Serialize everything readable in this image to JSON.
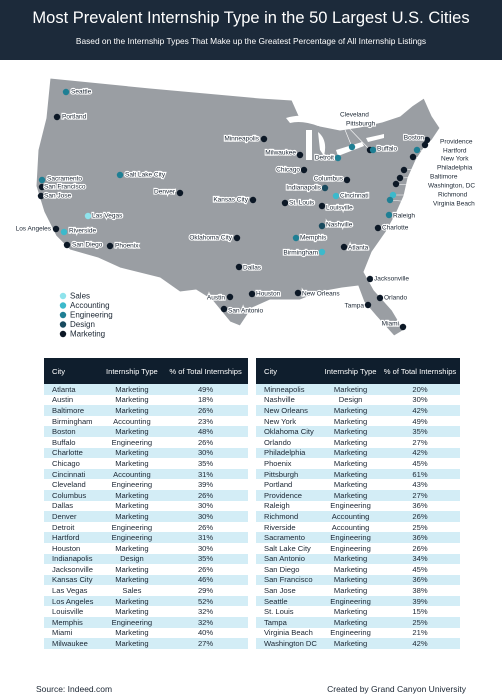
{
  "header": {
    "title": "Most Prevalent Internship Type in the 50 Largest U.S. Cities",
    "subtitle": "Based on the Internship Types That Make up the Greatest Percentage of All Internship Listings"
  },
  "legend": [
    {
      "label": "Sales",
      "color": "#8fe3ec"
    },
    {
      "label": "Accounting",
      "color": "#3cb9cb"
    },
    {
      "label": "Engineering",
      "color": "#1f7f94"
    },
    {
      "label": "Design",
      "color": "#184a5e"
    },
    {
      "label": "Marketing",
      "color": "#0c1826"
    }
  ],
  "map": {
    "cities": [
      {
        "label": "Seattle",
        "type": "Engineering"
      },
      {
        "label": "Portland",
        "type": "Marketing"
      },
      {
        "label": "Sacramento",
        "type": "Engineering"
      },
      {
        "label": "San Francisco",
        "type": "Marketing"
      },
      {
        "label": "San Jose",
        "type": "Marketing"
      },
      {
        "label": "Salt Lake City",
        "type": "Engineering"
      },
      {
        "label": "Las Vegas",
        "type": "Sales"
      },
      {
        "label": "Los Angeles",
        "type": "Marketing"
      },
      {
        "label": "Riverside",
        "type": "Accounting"
      },
      {
        "label": "San Diego",
        "type": "Marketing"
      },
      {
        "label": "Phoenix",
        "type": "Marketing"
      },
      {
        "label": "Denver",
        "type": "Marketing"
      },
      {
        "label": "Kansas City",
        "type": "Marketing"
      },
      {
        "label": "Oklahoma City",
        "type": "Marketing"
      },
      {
        "label": "Dallas",
        "type": "Marketing"
      },
      {
        "label": "Austin",
        "type": "Marketing"
      },
      {
        "label": "San Antonio",
        "type": "Marketing"
      },
      {
        "label": "Houston",
        "type": "Marketing"
      },
      {
        "label": "Minneapolis",
        "type": "Marketing"
      },
      {
        "label": "Milwaukee",
        "type": "Marketing"
      },
      {
        "label": "Chicago",
        "type": "Marketing"
      },
      {
        "label": "Detroit",
        "type": "Engineering"
      },
      {
        "label": "Cleveland",
        "type": "Engineering"
      },
      {
        "label": "Pittsburgh",
        "type": "Marketing"
      },
      {
        "label": "Columbus",
        "type": "Marketing"
      },
      {
        "label": "Indianapolis",
        "type": "Design"
      },
      {
        "label": "Cincinnati",
        "type": "Accounting"
      },
      {
        "label": "Louisville",
        "type": "Marketing"
      },
      {
        "label": "St. Louis",
        "type": "Marketing"
      },
      {
        "label": "Nashville",
        "type": "Design"
      },
      {
        "label": "Memphis",
        "type": "Engineering"
      },
      {
        "label": "Birmingham",
        "type": "Accounting"
      },
      {
        "label": "Atlanta",
        "type": "Marketing"
      },
      {
        "label": "New Orleans",
        "type": "Marketing"
      },
      {
        "label": "Jacksonville",
        "type": "Marketing"
      },
      {
        "label": "Orlando",
        "type": "Marketing"
      },
      {
        "label": "Tampa",
        "type": "Marketing"
      },
      {
        "label": "Miami",
        "type": "Marketing"
      },
      {
        "label": "Charlotte",
        "type": "Marketing"
      },
      {
        "label": "Raleigh",
        "type": "Engineering"
      },
      {
        "label": "Buffalo",
        "type": "Engineering"
      },
      {
        "label": "Boston",
        "type": "Marketing"
      },
      {
        "label": "Providence",
        "type": "Marketing"
      },
      {
        "label": "Hartford",
        "type": "Engineering"
      },
      {
        "label": "New York",
        "type": "Marketing"
      },
      {
        "label": "Philadelphia",
        "type": "Marketing"
      },
      {
        "label": "Baltimore",
        "type": "Marketing"
      },
      {
        "label": "Washington, DC",
        "type": "Marketing"
      },
      {
        "label": "Richmond",
        "type": "Accounting"
      },
      {
        "label": "Virginia Beach",
        "type": "Engineering"
      }
    ]
  },
  "table": {
    "columns": [
      "City",
      "Internship Type",
      "% of Total Internships"
    ],
    "left": [
      [
        "Atlanta",
        "Marketing",
        "49%"
      ],
      [
        "Austin",
        "Marketing",
        "18%"
      ],
      [
        "Baltimore",
        "Marketing",
        "26%"
      ],
      [
        "Birmingham",
        "Accounting",
        "23%"
      ],
      [
        "Boston",
        "Marketing",
        "48%"
      ],
      [
        "Buffalo",
        "Engineering",
        "26%"
      ],
      [
        "Charlotte",
        "Marketing",
        "30%"
      ],
      [
        "Chicago",
        "Marketing",
        "35%"
      ],
      [
        "Cincinnati",
        "Accounting",
        "31%"
      ],
      [
        "Cleveland",
        "Engineering",
        "39%"
      ],
      [
        "Columbus",
        "Marketing",
        "26%"
      ],
      [
        "Dallas",
        "Marketing",
        "30%"
      ],
      [
        "Denver",
        "Marketing",
        "30%"
      ],
      [
        "Detroit",
        "Engineering",
        "26%"
      ],
      [
        "Hartford",
        "Engineering",
        "31%"
      ],
      [
        "Houston",
        "Marketing",
        "30%"
      ],
      [
        "Indianapolis",
        "Design",
        "35%"
      ],
      [
        "Jacksonville",
        "Marketing",
        "26%"
      ],
      [
        "Kansas City",
        "Marketing",
        "46%"
      ],
      [
        "Las Vegas",
        "Sales",
        "29%"
      ],
      [
        "Los Angeles",
        "Marketing",
        "52%"
      ],
      [
        "Louisville",
        "Marketing",
        "32%"
      ],
      [
        "Memphis",
        "Engineering",
        "32%"
      ],
      [
        "Miami",
        "Marketing",
        "40%"
      ],
      [
        "Milwaukee",
        "Marketing",
        "27%"
      ]
    ],
    "right": [
      [
        "Minneapolis",
        "Marketing",
        "20%"
      ],
      [
        "Nashville",
        "Design",
        "30%"
      ],
      [
        "New Orleans",
        "Marketing",
        "42%"
      ],
      [
        "New York",
        "Marketing",
        "49%"
      ],
      [
        "Oklahoma City",
        "Marketing",
        "35%"
      ],
      [
        "Orlando",
        "Marketing",
        "27%"
      ],
      [
        "Philadelphia",
        "Marketing",
        "42%"
      ],
      [
        "Phoenix",
        "Marketing",
        "45%"
      ],
      [
        "Pittsburgh",
        "Marketing",
        "61%"
      ],
      [
        "Portland",
        "Marketing",
        "43%"
      ],
      [
        "Providence",
        "Marketing",
        "27%"
      ],
      [
        "Raleigh",
        "Engineering",
        "36%"
      ],
      [
        "Richmond",
        "Accounting",
        "26%"
      ],
      [
        "Riverside",
        "Accounting",
        "25%"
      ],
      [
        "Sacramento",
        "Engineering",
        "36%"
      ],
      [
        "Salt Lake City",
        "Engineering",
        "26%"
      ],
      [
        "San Antonio",
        "Marketing",
        "34%"
      ],
      [
        "San Diego",
        "Marketing",
        "45%"
      ],
      [
        "San Francisco",
        "Marketing",
        "36%"
      ],
      [
        "San Jose",
        "Marketing",
        "38%"
      ],
      [
        "Seattle",
        "Engineering",
        "39%"
      ],
      [
        "St. Louis",
        "Marketing",
        "15%"
      ],
      [
        "Tampa",
        "Marketing",
        "25%"
      ],
      [
        "Virginia Beach",
        "Engineering",
        "21%"
      ],
      [
        "Washington DC",
        "Marketing",
        "42%"
      ]
    ]
  },
  "footer": {
    "source": "Source: Indeed.com",
    "credit": "Created by Grand Canyon University"
  }
}
